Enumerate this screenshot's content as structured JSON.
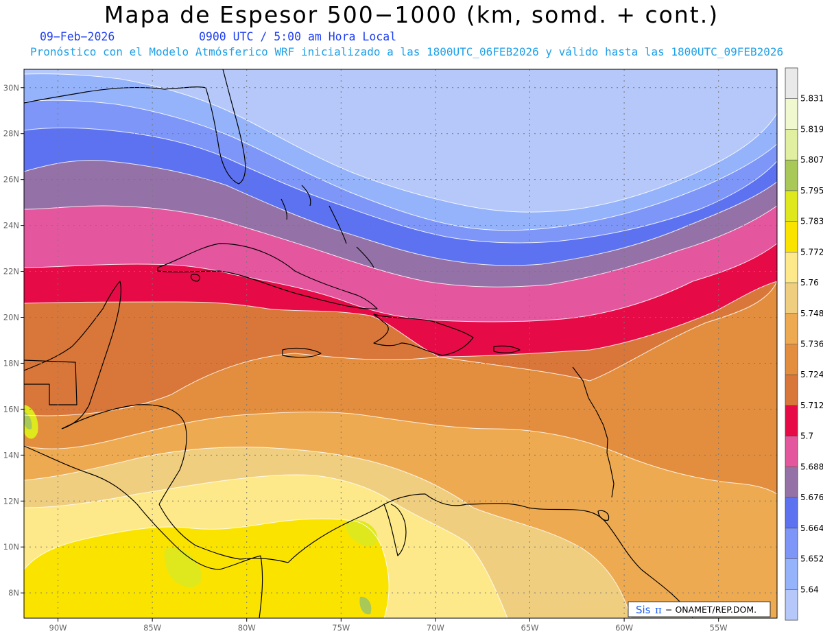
{
  "header": {
    "title": "Mapa de Espesor 500−1000 (km, somd. + cont.)",
    "date": "09−Feb−2026",
    "valid_time": "0900 UTC / 5:00 am Hora Local",
    "model_info": "Pronóstico con el Modelo Atmósferico WRF inicializado a las 1800UTC_06FEB2026 y válido hasta las  1800UTC_09FEB2026"
  },
  "map": {
    "lat_labels": [
      "30N",
      "28N",
      "26N",
      "24N",
      "22N",
      "20N",
      "18N",
      "16N",
      "14N",
      "12N",
      "10N",
      "8N"
    ],
    "lon_labels": [
      "90W",
      "85W",
      "80W",
      "75W",
      "70W",
      "65W",
      "60W",
      "55W"
    ],
    "lat_values": [
      30,
      28,
      26,
      24,
      22,
      20,
      18,
      16,
      14,
      12,
      10,
      8
    ],
    "lon_values": [
      -90,
      -85,
      -80,
      -75,
      -70,
      -65,
      -60,
      -55
    ],
    "lat_range": [
      6.9,
      30.8
    ],
    "lon_range": [
      -91.8,
      -51.9
    ],
    "gridlines": "dotted"
  },
  "colorbar": {
    "levels": [
      "5.64",
      "5.652",
      "5.664",
      "5.676",
      "5.688",
      "5.7",
      "5.712",
      "5.724",
      "5.736",
      "5.748",
      "5.76",
      "5.772",
      "5.783",
      "5.795",
      "5.807",
      "5.819",
      "5.831"
    ],
    "colors": [
      "#b5c8f9",
      "#94b3fa",
      "#7e96f8",
      "#5d72f0",
      "#9472a8",
      "#e4579f",
      "#e60b47",
      "#d9773a",
      "#e38e3e",
      "#eeaa50",
      "#f0ce80",
      "#fde98a",
      "#fbe300",
      "#dfe81c",
      "#a8c858",
      "#e0f0a0",
      "#f0f8d0",
      "#e9e9e9"
    ]
  },
  "footer": {
    "logo_sis": "Sis",
    "logo_pi": "π",
    "logo_text": "− ONAMET/REP.DOM."
  }
}
